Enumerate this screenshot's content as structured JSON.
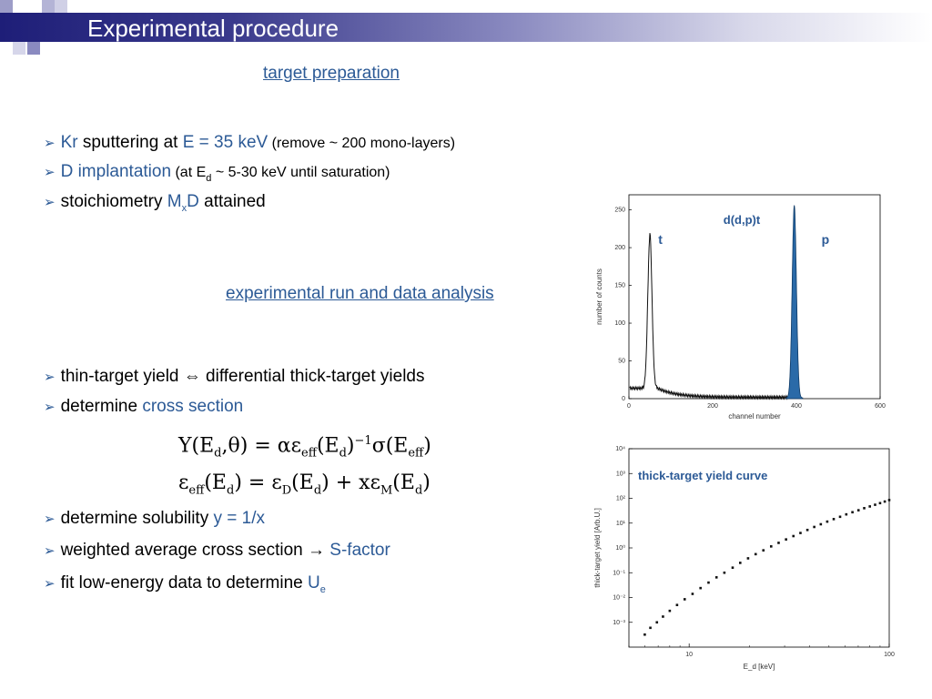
{
  "slide": {
    "title": "Experimental procedure",
    "section1": "target preparation",
    "section2": "experimental run and data analysis"
  },
  "bullets1": [
    {
      "a": "Kr",
      "b": " sputtering at ",
      "c": "E = 35 keV",
      "d": " (remove ~ 200 mono-layers)"
    },
    {
      "a": "D implantation",
      "b": "  (at E",
      "sub": "d",
      "c": " ~ 5-30 keV until saturation)"
    },
    {
      "a": "stoichiometry ",
      "b": "M",
      "sub": "x",
      "c": "D",
      "d": " attained"
    }
  ],
  "bullets2": [
    {
      "a": "thin-target yield ",
      "sym": "⇔",
      "b": " differential thick-target yields"
    },
    {
      "a": "determine ",
      "b": "cross section"
    },
    {
      "a": "determine solubility ",
      "b": "y = 1/x"
    },
    {
      "a": "weighted average cross section ",
      "sym": "→",
      "b": " S-factor"
    },
    {
      "a": "fit low-energy data to determine ",
      "b": "U",
      "sub": "e"
    }
  ],
  "colors": {
    "accent": "#2c5a96",
    "title_bg": "#1e1e78",
    "spectrum_fill": "#2a6aa8"
  },
  "chart_data": [
    {
      "type": "line",
      "title": "d(d,p)t",
      "xlabel": "channel number",
      "ylabel": "number of counts",
      "xlim": [
        0,
        600
      ],
      "ylim": [
        0,
        270
      ],
      "xticks": [
        0,
        200,
        400,
        600
      ],
      "yticks": [
        0,
        50,
        100,
        150,
        200,
        250
      ],
      "annotations": [
        {
          "text": "t",
          "x": 70,
          "y": 205
        },
        {
          "text": "p",
          "x": 460,
          "y": 205
        }
      ],
      "peaks": [
        {
          "name": "t",
          "center": 50,
          "height": 200,
          "width": 5
        },
        {
          "name": "p",
          "center": 395,
          "height": 255,
          "width": 5,
          "filled": true
        }
      ]
    },
    {
      "type": "scatter",
      "title": "thick-target yield curve",
      "xlabel": "E_d [keV]",
      "ylabel": "thick-target yield [Arb.U.]",
      "xscale": "log",
      "yscale": "log",
      "xlim": [
        5,
        100
      ],
      "ylim": [
        0.0001,
        10000
      ],
      "xticks": [
        "10",
        "100"
      ],
      "yticks": [
        "10⁴",
        "10³",
        "10²",
        "10¹",
        "10⁰",
        "10⁻¹",
        "10⁻²",
        "10⁻³"
      ],
      "x": [
        6,
        6.4,
        6.9,
        7.4,
        8,
        8.7,
        9.5,
        10.4,
        11.4,
        12.5,
        13.7,
        15,
        16.5,
        18,
        19.7,
        21.5,
        23.5,
        25.7,
        28,
        30.5,
        33.2,
        36,
        39,
        42.2,
        45.5,
        49,
        52.8,
        56.8,
        61,
        65.5,
        70.2,
        75,
        80,
        85,
        90,
        95,
        100
      ],
      "y": [
        0.00032,
        0.0006,
        0.001,
        0.0017,
        0.0029,
        0.005,
        0.0085,
        0.014,
        0.024,
        0.04,
        0.065,
        0.1,
        0.16,
        0.25,
        0.38,
        0.56,
        0.8,
        1.15,
        1.6,
        2.2,
        3.0,
        4.0,
        5.3,
        7.0,
        9.0,
        11.5,
        14.5,
        18,
        22.5,
        27.5,
        33,
        40,
        47,
        55,
        64,
        74,
        85
      ]
    }
  ]
}
